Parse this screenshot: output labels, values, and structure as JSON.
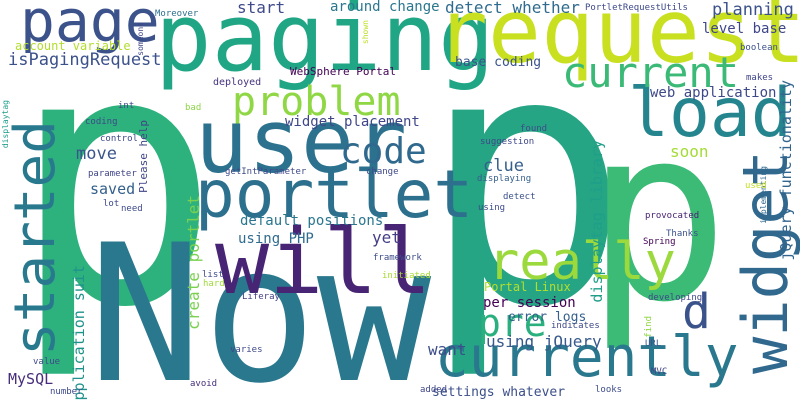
{
  "words": [
    {
      "text": "p",
      "color": "#2db27d"
    },
    {
      "text": "p",
      "color": "#25a584"
    },
    {
      "text": "p",
      "color": "#3bbb75"
    },
    {
      "text": "Now",
      "color": "#2a788e"
    },
    {
      "text": "paging",
      "color": "#21a685"
    },
    {
      "text": "request",
      "color": "#c8e020"
    },
    {
      "text": "page",
      "color": "#3b528b"
    },
    {
      "text": "user",
      "color": "#2c728e"
    },
    {
      "text": "portlet",
      "color": "#2d708e"
    },
    {
      "text": "will",
      "color": "#482475"
    },
    {
      "text": "load",
      "color": "#25858e"
    },
    {
      "text": "widget",
      "color": "#31688e"
    },
    {
      "text": "currently",
      "color": "#2a788e"
    },
    {
      "text": "current",
      "color": "#3aba76"
    },
    {
      "text": "problem",
      "color": "#8fd744"
    },
    {
      "text": "started",
      "color": "#29798e"
    },
    {
      "text": "really",
      "color": "#9bd93c"
    },
    {
      "text": "code",
      "color": "#30698e"
    },
    {
      "text": "pre",
      "color": "#2ab07f"
    },
    {
      "text": "d",
      "color": "#3a538b"
    },
    {
      "text": "planning",
      "color": "#3b528b"
    },
    {
      "text": "detect whether",
      "color": "#2f6b8e"
    },
    {
      "text": "around change",
      "color": "#2a778e"
    },
    {
      "text": "start",
      "color": "#3e4a89"
    },
    {
      "text": "isPagingRequest",
      "color": "#3b518b"
    },
    {
      "text": "account variable",
      "color": "#b2dd2d"
    },
    {
      "text": "move",
      "color": "#3a548c"
    },
    {
      "text": "clue",
      "color": "#355f8d"
    },
    {
      "text": "saved",
      "color": "#34608d"
    },
    {
      "text": "soon",
      "color": "#a5db36"
    },
    {
      "text": "web application",
      "color": "#3e4989"
    },
    {
      "text": "level base",
      "color": "#3f4788"
    },
    {
      "text": "base coding",
      "color": "#3b528b"
    },
    {
      "text": "jQuery functionality",
      "color": "#32658e"
    },
    {
      "text": "displaytag library",
      "color": "#1f9e89"
    },
    {
      "text": "widget placement",
      "color": "#3f4788"
    },
    {
      "text": "default positions",
      "color": "#2a768e"
    },
    {
      "text": "yet",
      "color": "#433e85"
    },
    {
      "text": "create portlet",
      "color": "#7ad151"
    },
    {
      "text": "using PHP",
      "color": "#2f6b8e"
    },
    {
      "text": "application suit",
      "color": "#20928c"
    },
    {
      "text": "want",
      "color": "#3d4e8a"
    },
    {
      "text": "using jQuery",
      "color": "#38598c"
    },
    {
      "text": "MySQL",
      "color": "#472d7b"
    },
    {
      "text": "settings whatever",
      "color": "#3c4f8a"
    },
    {
      "text": "per session",
      "color": "#440154"
    },
    {
      "text": "error logs",
      "color": "#355f8d"
    },
    {
      "text": "Portal Linux",
      "color": "#b5de2b"
    },
    {
      "text": "WebSphere Portal",
      "color": "#440154"
    },
    {
      "text": "PortletRequestUtils",
      "color": "#3e4989"
    },
    {
      "text": "Moreover",
      "color": "#2e6f8e"
    },
    {
      "text": "deployed",
      "color": "#46337e"
    },
    {
      "text": "getIntParameter",
      "color": "#3e4a89"
    },
    {
      "text": "Please help",
      "color": "#414487"
    },
    {
      "text": "suggestion",
      "color": "#3f4889"
    },
    {
      "text": "displaying",
      "color": "#355f8d"
    },
    {
      "text": "detect",
      "color": "#3b518b"
    },
    {
      "text": "using",
      "color": "#3e4a89"
    },
    {
      "text": "found",
      "color": "#3e4c8a"
    },
    {
      "text": "makes",
      "color": "#404588"
    },
    {
      "text": "boolean",
      "color": "#3b518b"
    },
    {
      "text": "implementing",
      "color": "#31688e"
    },
    {
      "text": "provocated",
      "color": "#482173"
    },
    {
      "text": "Thanks",
      "color": "#3b528b"
    },
    {
      "text": "Spring",
      "color": "#440154"
    },
    {
      "text": "developing",
      "color": "#3e4989"
    },
    {
      "text": "Liferay",
      "color": "#433e85"
    },
    {
      "text": "framework",
      "color": "#3e4c8a"
    },
    {
      "text": "initiated",
      "color": "#a8db34"
    },
    {
      "text": "list",
      "color": "#3e4989"
    },
    {
      "text": "hard",
      "color": "#9fda3a"
    },
    {
      "text": "varies",
      "color": "#3e4989"
    },
    {
      "text": "avoid",
      "color": "#46307e"
    },
    {
      "text": "added",
      "color": "#3f4788"
    },
    {
      "text": "looks",
      "color": "#3e4c8a"
    },
    {
      "text": "MVC",
      "color": "#3f4788"
    },
    {
      "text": "URL",
      "color": "#39568c"
    },
    {
      "text": "find",
      "color": "#8fd744"
    },
    {
      "text": "indicates",
      "color": "#3e4989"
    },
    {
      "text": "used",
      "color": "#c2df23"
    },
    {
      "text": "shown",
      "color": "#bddf26"
    },
    {
      "text": "someone",
      "color": "#3f4788"
    },
    {
      "text": "int",
      "color": "#3e4989"
    },
    {
      "text": "bad",
      "color": "#8bd646"
    },
    {
      "text": "coding",
      "color": "#3e4989"
    },
    {
      "text": "control",
      "color": "#3e4989"
    },
    {
      "text": "parameter",
      "color": "#404588"
    },
    {
      "text": "lot",
      "color": "#3e4989"
    },
    {
      "text": "need",
      "color": "#3e4989"
    },
    {
      "text": "displaytag",
      "color": "#1e9c89"
    },
    {
      "text": "value",
      "color": "#3e4989"
    },
    {
      "text": "number",
      "color": "#3e4989"
    },
    {
      "text": "change",
      "color": "#3e4989"
    }
  ]
}
